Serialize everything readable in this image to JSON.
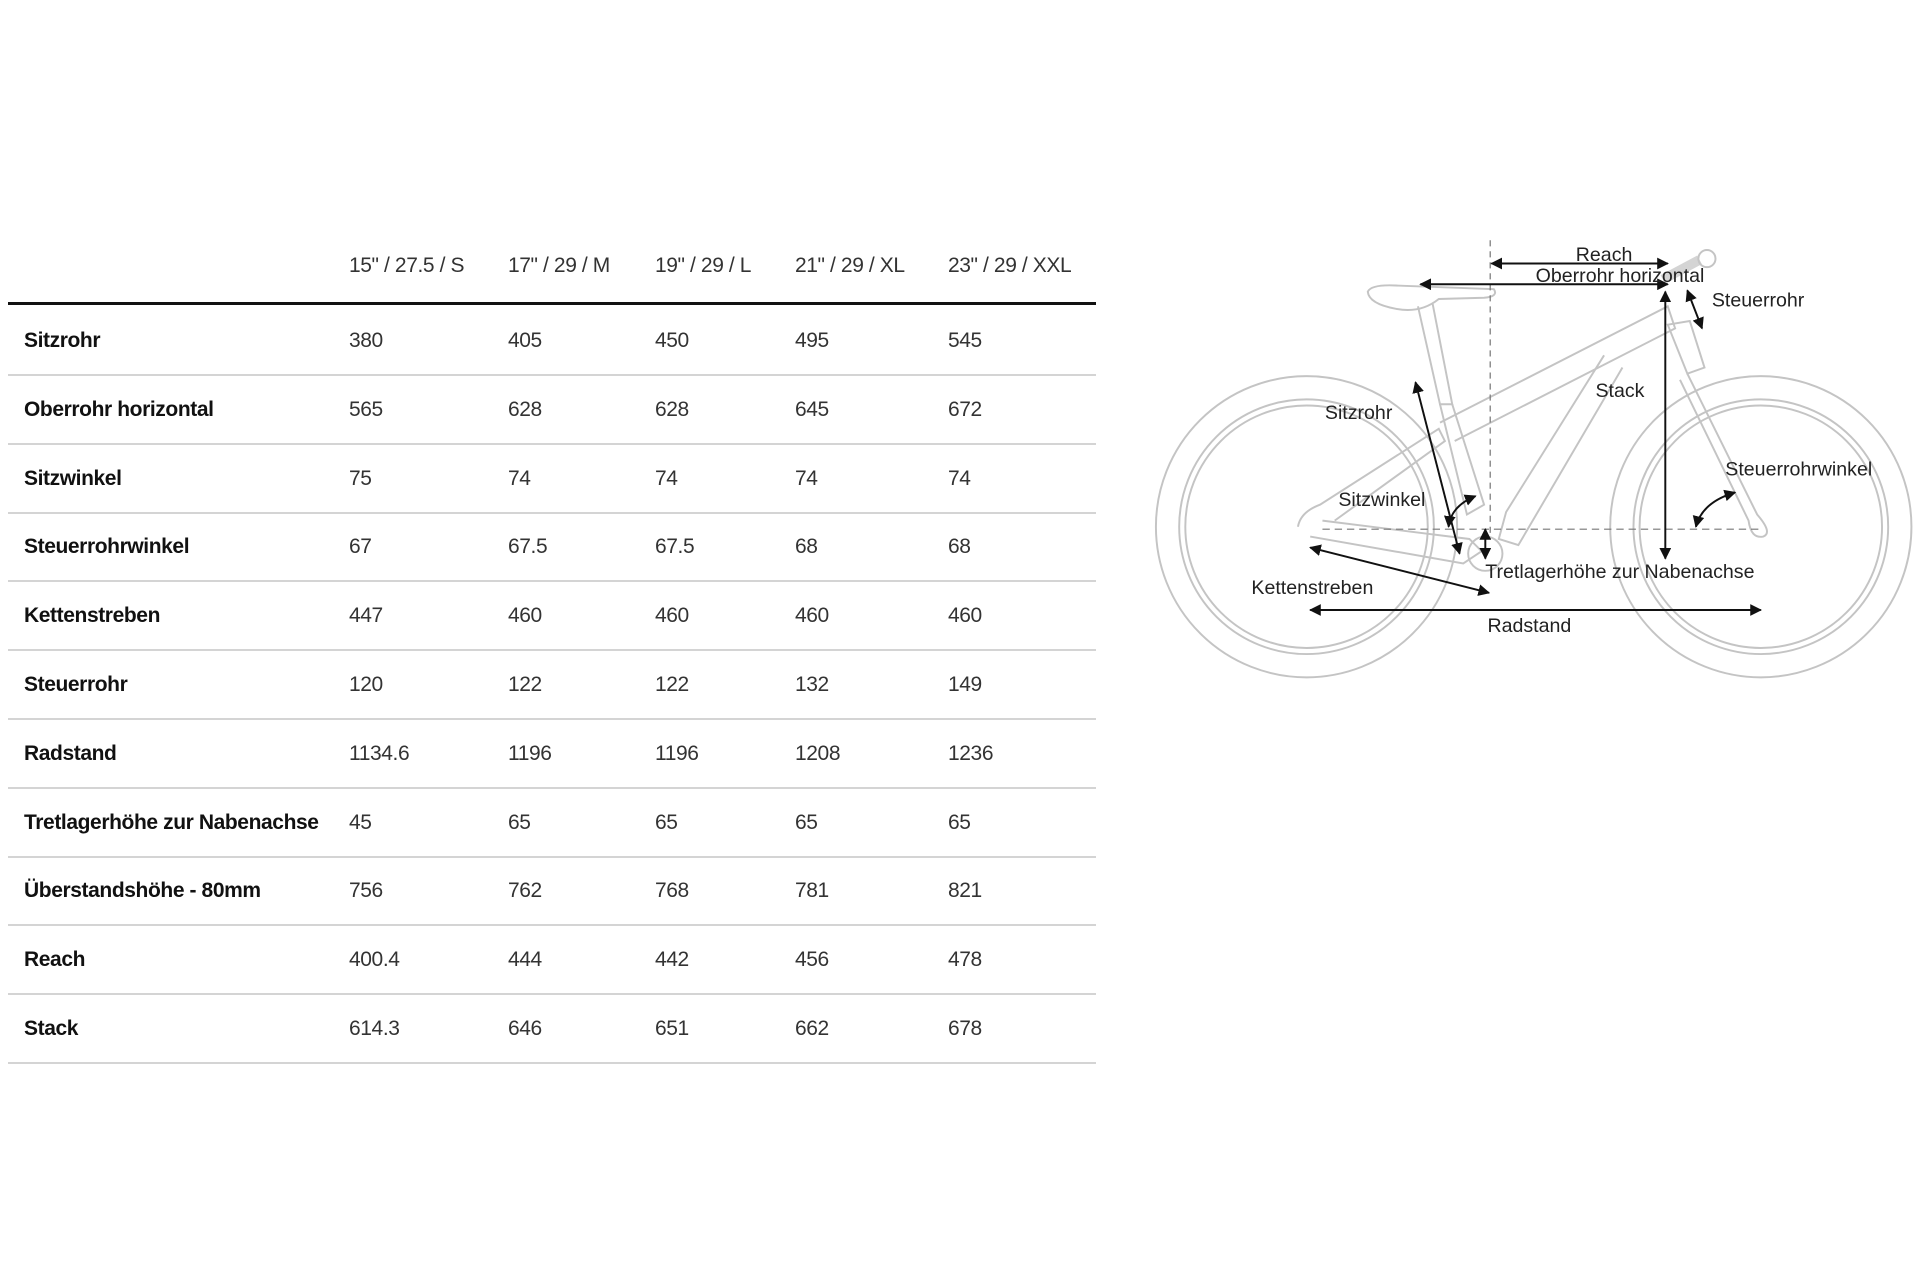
{
  "table": {
    "columns": [
      "15\" / 27.5 / S",
      "17\" / 29 / M",
      "19\" / 29 / L",
      "21\" / 29 / XL",
      "23\" / 29 / XXL"
    ],
    "rows": [
      {
        "label": "Sitzrohr",
        "values": [
          "380",
          "405",
          "450",
          "495",
          "545"
        ]
      },
      {
        "label": "Oberrohr horizontal",
        "values": [
          "565",
          "628",
          "628",
          "645",
          "672"
        ]
      },
      {
        "label": "Sitzwinkel",
        "values": [
          "75",
          "74",
          "74",
          "74",
          "74"
        ]
      },
      {
        "label": "Steuerrohrwinkel",
        "values": [
          "67",
          "67.5",
          "67.5",
          "68",
          "68"
        ]
      },
      {
        "label": "Kettenstreben",
        "values": [
          "447",
          "460",
          "460",
          "460",
          "460"
        ]
      },
      {
        "label": "Steuerrohr",
        "values": [
          "120",
          "122",
          "122",
          "132",
          "149"
        ]
      },
      {
        "label": "Radstand",
        "values": [
          "1134.6",
          "1196",
          "1196",
          "1208",
          "1236"
        ]
      },
      {
        "label": "Tretlagerhöhe zur Nabenachse",
        "values": [
          "45",
          "65",
          "65",
          "65",
          "65"
        ]
      },
      {
        "label": "Überstandshöhe - 80mm",
        "values": [
          "756",
          "762",
          "768",
          "781",
          "821"
        ]
      },
      {
        "label": "Reach",
        "values": [
          "400.4",
          "444",
          "442",
          "456",
          "478"
        ]
      },
      {
        "label": "Stack",
        "values": [
          "614.3",
          "646",
          "651",
          "662",
          "678"
        ]
      }
    ]
  },
  "diagram": {
    "reach": "Reach",
    "oberrohr": "Oberrohr horizontal",
    "steuerrohr": "Steuerrohr",
    "stack": "Stack",
    "sitzrohr": "Sitzrohr",
    "steuerrohrwinkel": "Steuerrohrwinkel",
    "sitzwinkel": "Sitzwinkel",
    "tretlager": "Tretlagerhöhe zur Nabenachse",
    "kettenstreben": "Kettenstreben",
    "radstand": "Radstand"
  }
}
